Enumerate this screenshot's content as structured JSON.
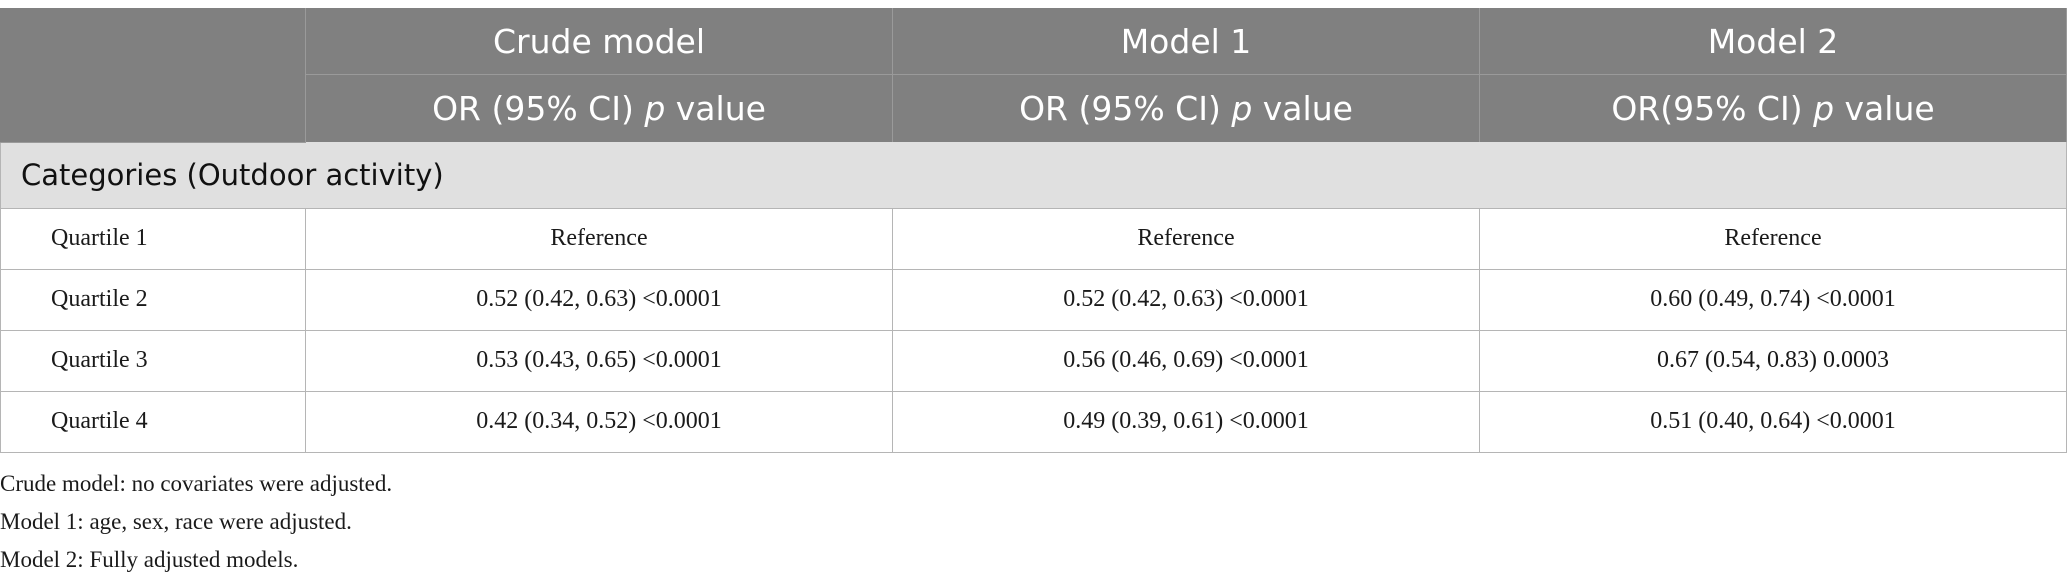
{
  "table": {
    "header": {
      "models": [
        "Crude model",
        "Model 1",
        "Model 2"
      ],
      "subheaders": [
        {
          "before": "OR (95% CI) ",
          "p": "p",
          "after": " value"
        },
        {
          "before": "OR (95% CI) ",
          "p": "p",
          "after": " value"
        },
        {
          "before": "OR(95% CI) ",
          "p": "p",
          "after": " value"
        }
      ]
    },
    "category_label": "Categories (Outdoor activity)",
    "rows": [
      {
        "label": "Quartile 1",
        "values": [
          "Reference",
          "Reference",
          "Reference"
        ]
      },
      {
        "label": "Quartile 2",
        "values": [
          "0.52 (0.42, 0.63) <0.0001",
          "0.52 (0.42, 0.63) <0.0001",
          "0.60 (0.49, 0.74) <0.0001"
        ]
      },
      {
        "label": "Quartile 3",
        "values": [
          "0.53 (0.43, 0.65) <0.0001",
          "0.56 (0.46, 0.69) <0.0001",
          "0.67 (0.54, 0.83) 0.0003"
        ]
      },
      {
        "label": "Quartile 4",
        "values": [
          "0.42 (0.34, 0.52) <0.0001",
          "0.49 (0.39, 0.61) <0.0001",
          "0.51 (0.40, 0.64) <0.0001"
        ]
      }
    ]
  },
  "footnotes": [
    "Crude model: no covariates were adjusted.",
    "Model 1: age, sex, race were adjusted.",
    "Model 2: Fully adjusted models."
  ]
}
